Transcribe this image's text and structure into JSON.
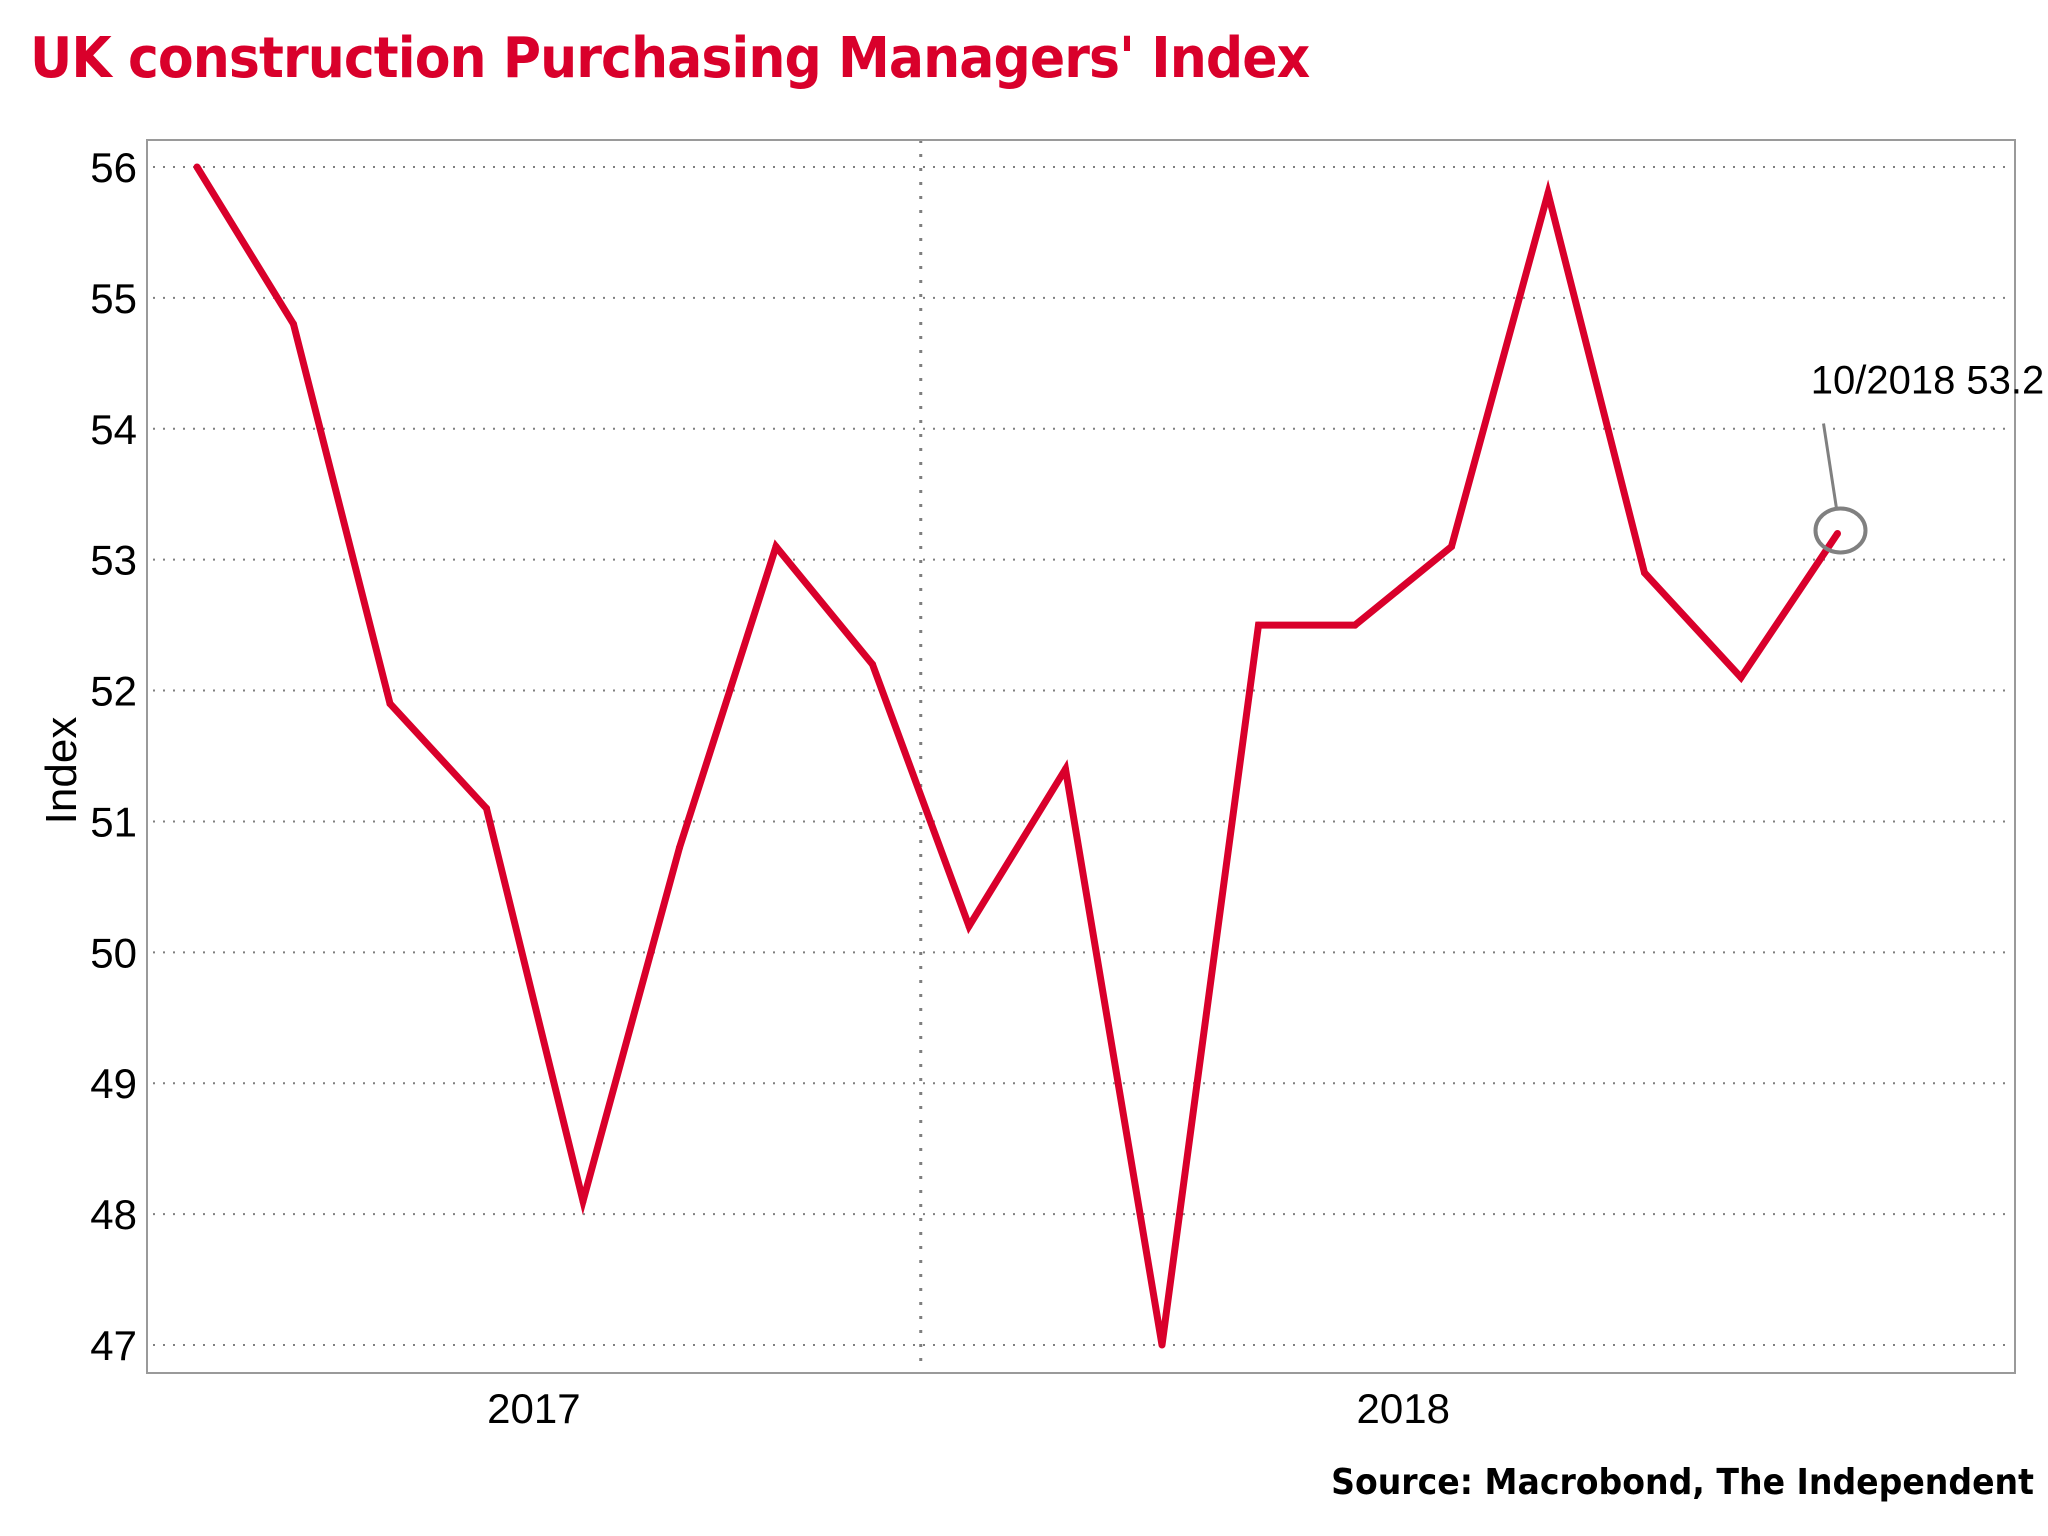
{
  "header": {
    "title": "UK construction Purchasing Managers' Index"
  },
  "footer": {
    "source": "Source: Macrobond, The Independent"
  },
  "colors": {
    "title": "#d9002b",
    "series": "#d9002b",
    "grid": "#7f7f7f",
    "frame": "#9a9a9a",
    "annotation": "#808080"
  },
  "chart_data": {
    "type": "line",
    "title": "UK construction Purchasing Managers' Index",
    "xlabel": "",
    "ylabel": "Index",
    "ylim": [
      47,
      56
    ],
    "yticks": [
      56,
      55,
      54,
      53,
      52,
      51,
      50,
      49,
      48,
      47
    ],
    "grid": true,
    "x": [
      "05/2017",
      "06/2017",
      "07/2017",
      "08/2017",
      "09/2017",
      "10/2017",
      "11/2017",
      "12/2017",
      "01/2018",
      "02/2018",
      "03/2018",
      "04/2018",
      "05/2018",
      "06/2018",
      "07/2018",
      "08/2018",
      "09/2018",
      "10/2018"
    ],
    "xtick_labels": [
      {
        "label": "2017",
        "span": [
          "05/2017",
          "12/2017"
        ]
      },
      {
        "label": "2018",
        "span": [
          "01/2018",
          "10/2018"
        ]
      }
    ],
    "year_divider_between": [
      "12/2017",
      "01/2018"
    ],
    "series": [
      {
        "name": "UK construction PMI",
        "values": [
          56.0,
          54.8,
          51.9,
          51.1,
          48.1,
          50.8,
          53.1,
          52.2,
          50.2,
          51.4,
          47.0,
          52.5,
          52.5,
          53.1,
          55.8,
          52.9,
          52.1,
          53.2
        ]
      }
    ],
    "annotations": [
      {
        "text": "10/2018 53.2",
        "x": "10/2018",
        "y": 53.2,
        "marker": "circle"
      }
    ],
    "legend": "none"
  }
}
